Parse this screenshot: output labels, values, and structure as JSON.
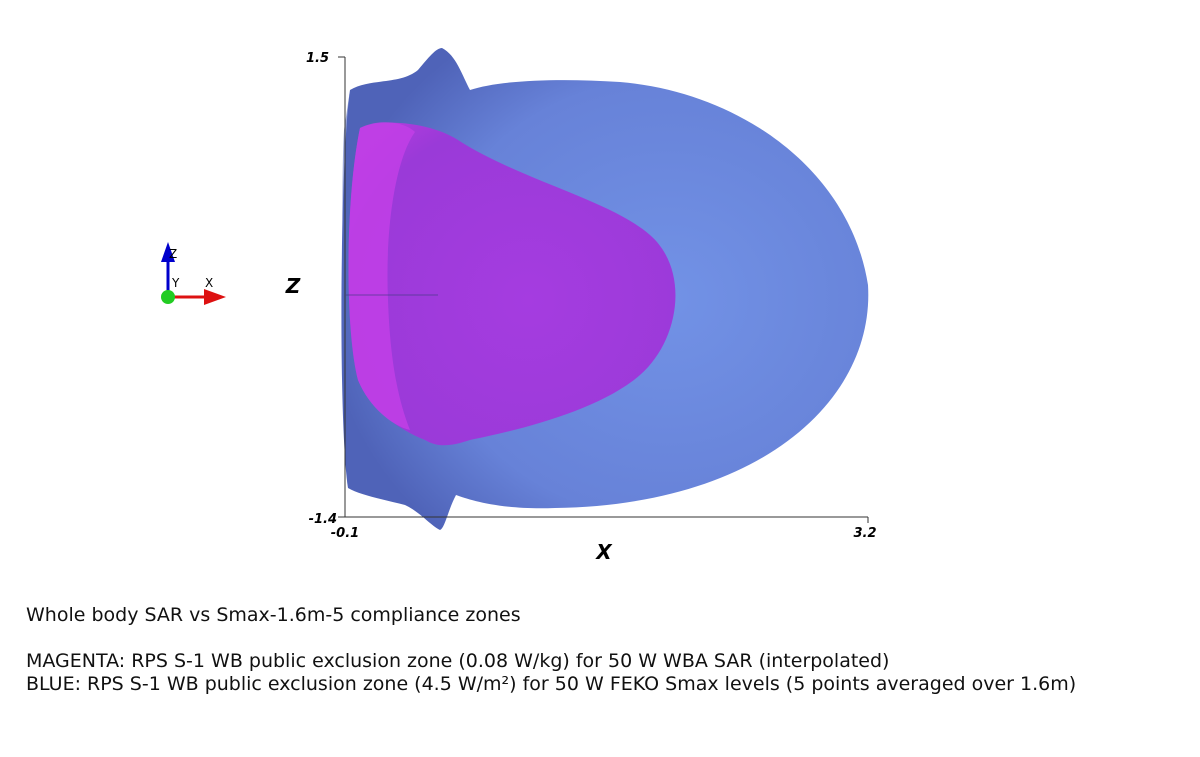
{
  "scene": {
    "axes": {
      "x_title": "X",
      "z_title": "Z",
      "x_ticks": [
        "-0.1",
        "3.2"
      ],
      "z_ticks": [
        "1.5",
        "-1.4"
      ]
    },
    "orientation_triad": {
      "labels": [
        "Z",
        "Y",
        "X"
      ],
      "colors": {
        "z": "#0000cc",
        "y": "#22cc22",
        "x": "#dd1111"
      }
    },
    "zone_colors": {
      "blue": "#6b88dd",
      "magenta": "#a53ce0"
    }
  },
  "caption": {
    "title": "Whole body SAR vs Smax-1.6m-5 compliance zones",
    "magenta_line": "MAGENTA: RPS S-1 WB public exclusion zone (0.08 W/kg) for 50 W WBA SAR (interpolated)",
    "blue_line": "BLUE: RPS S-1 WB public exclusion zone (4.5 W/m²) for 50 W FEKO Smax levels (5 points averaged over 1.6m)"
  }
}
